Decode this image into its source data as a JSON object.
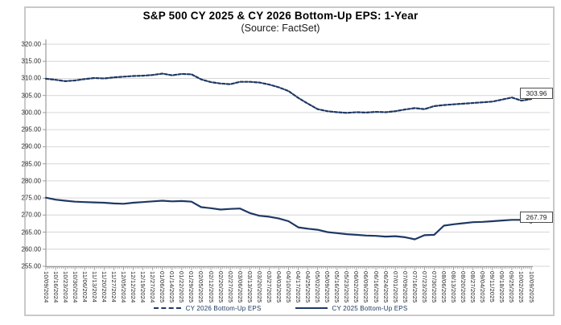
{
  "figure": {
    "title": "S&P 500 CY 2025 & CY 2026 Bottom-Up EPS: 1-Year",
    "subtitle": "(Source: FactSet)"
  },
  "colors": {
    "series_line": "#1f3864",
    "gridline": "#d6d6d6",
    "axis": "#9a9a9a",
    "figure_border": "#c9c9c9",
    "label_text": "#262626"
  },
  "chart_data": {
    "type": "line",
    "title": "S&P 500 CY 2025 & CY 2026 Bottom-Up EPS: 1-Year",
    "subtitle": "(Source: FactSet)",
    "xlabel": "",
    "ylabel": "",
    "ylim": [
      255,
      320
    ],
    "ytick_step": 5,
    "ytick_labels": [
      "320.00",
      "315.00",
      "310.00",
      "305.00",
      "300.00",
      "295.00",
      "290.00",
      "285.00",
      "280.00",
      "275.00",
      "270.00",
      "265.00",
      "260.00",
      "255.00"
    ],
    "grid": "horizontal",
    "legend_position": "bottom",
    "x": [
      "10/09/2024",
      "10/16/2024",
      "10/23/2024",
      "10/30/2024",
      "11/06/2024",
      "11/13/2024",
      "11/20/2024",
      "11/27/2024",
      "12/05/2024",
      "12/12/2024",
      "12/19/2024",
      "12/27/2024",
      "01/06/2025",
      "01/14/2025",
      "01/22/2025",
      "01/29/2025",
      "02/05/2025",
      "02/12/2025",
      "02/20/2025",
      "02/27/2025",
      "03/06/2025",
      "03/13/2025",
      "03/20/2025",
      "03/27/2025",
      "04/03/2025",
      "04/10/2025",
      "04/17/2025",
      "04/25/2025",
      "05/02/2025",
      "05/09/2025",
      "05/16/2025",
      "05/23/2025",
      "06/02/2025",
      "06/09/2025",
      "06/16/2025",
      "06/24/2025",
      "07/01/2025",
      "07/09/2025",
      "07/16/2025",
      "07/23/2025",
      "07/30/2025",
      "08/06/2025",
      "08/13/2025",
      "08/20/2025",
      "08/27/2025",
      "09/04/2025",
      "09/11/2025",
      "09/18/2025",
      "09/25/2025",
      "10/02/2025",
      "10/09/2025"
    ],
    "series": [
      {
        "name": "CY 2026 Bottom-Up EPS",
        "style": "dashed",
        "color": "#1f3864",
        "end_label": "303.96",
        "values": [
          309.9,
          309.6,
          309.2,
          309.4,
          309.8,
          310.1,
          310.0,
          310.3,
          310.5,
          310.7,
          310.8,
          311.0,
          311.4,
          310.9,
          311.3,
          311.2,
          309.7,
          308.9,
          308.5,
          308.3,
          309.0,
          309.0,
          308.8,
          308.2,
          307.4,
          306.3,
          304.3,
          302.6,
          301.0,
          300.4,
          300.1,
          299.9,
          300.1,
          300.0,
          300.2,
          300.1,
          300.4,
          300.9,
          301.3,
          301.0,
          301.9,
          302.2,
          302.4,
          302.6,
          302.8,
          303.0,
          303.2,
          303.8,
          304.4,
          303.5,
          303.96
        ]
      },
      {
        "name": "CY 2025 Bottom-Up EPS",
        "style": "solid",
        "color": "#1f3864",
        "end_label": "267.79",
        "values": [
          275.1,
          274.5,
          274.2,
          273.9,
          273.8,
          273.7,
          273.6,
          273.4,
          273.3,
          273.6,
          273.8,
          274.0,
          274.2,
          274.0,
          274.1,
          273.9,
          272.3,
          272.0,
          271.6,
          271.8,
          271.9,
          270.6,
          269.8,
          269.5,
          269.0,
          268.2,
          266.4,
          266.0,
          265.7,
          265.0,
          264.7,
          264.4,
          264.2,
          264.0,
          263.9,
          263.7,
          263.8,
          263.5,
          262.9,
          264.1,
          264.2,
          266.9,
          267.3,
          267.6,
          267.9,
          268.0,
          268.2,
          268.4,
          268.6,
          268.6,
          267.79
        ]
      }
    ]
  }
}
